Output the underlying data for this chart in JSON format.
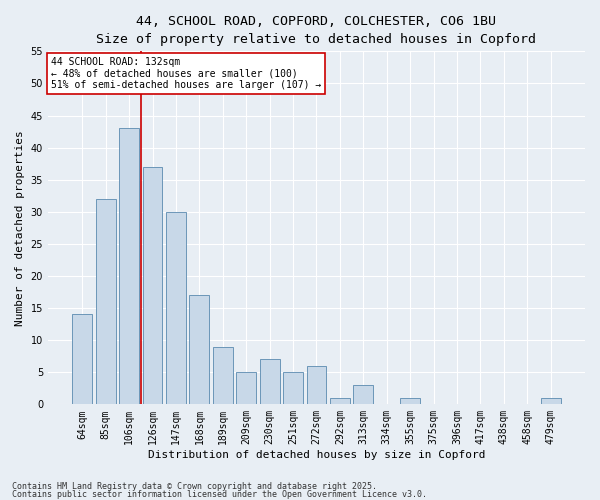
{
  "title_line1": "44, SCHOOL ROAD, COPFORD, COLCHESTER, CO6 1BU",
  "title_line2": "Size of property relative to detached houses in Copford",
  "xlabel": "Distribution of detached houses by size in Copford",
  "ylabel": "Number of detached properties",
  "categories": [
    "64sqm",
    "85sqm",
    "106sqm",
    "126sqm",
    "147sqm",
    "168sqm",
    "189sqm",
    "209sqm",
    "230sqm",
    "251sqm",
    "272sqm",
    "292sqm",
    "313sqm",
    "334sqm",
    "355sqm",
    "375sqm",
    "396sqm",
    "417sqm",
    "438sqm",
    "458sqm",
    "479sqm"
  ],
  "values": [
    14,
    32,
    43,
    37,
    30,
    17,
    9,
    5,
    7,
    5,
    6,
    1,
    3,
    0,
    1,
    0,
    0,
    0,
    0,
    0,
    1
  ],
  "bar_color": "#c8d8e8",
  "bar_edge_color": "#5a8ab0",
  "background_color": "#e8eef4",
  "grid_color": "#ffffff",
  "vline_color": "#cc0000",
  "vline_pos": 2.5,
  "annotation_text": "44 SCHOOL ROAD: 132sqm\n← 48% of detached houses are smaller (100)\n51% of semi-detached houses are larger (107) →",
  "annotation_box_color": "#ffffff",
  "annotation_box_edge": "#cc0000",
  "ylim": [
    0,
    55
  ],
  "yticks": [
    0,
    5,
    10,
    15,
    20,
    25,
    30,
    35,
    40,
    45,
    50,
    55
  ],
  "footer_line1": "Contains HM Land Registry data © Crown copyright and database right 2025.",
  "footer_line2": "Contains public sector information licensed under the Open Government Licence v3.0.",
  "title_fontsize": 9.5,
  "subtitle_fontsize": 8.5,
  "axis_label_fontsize": 8,
  "tick_fontsize": 7,
  "annotation_fontsize": 7,
  "footer_fontsize": 6
}
